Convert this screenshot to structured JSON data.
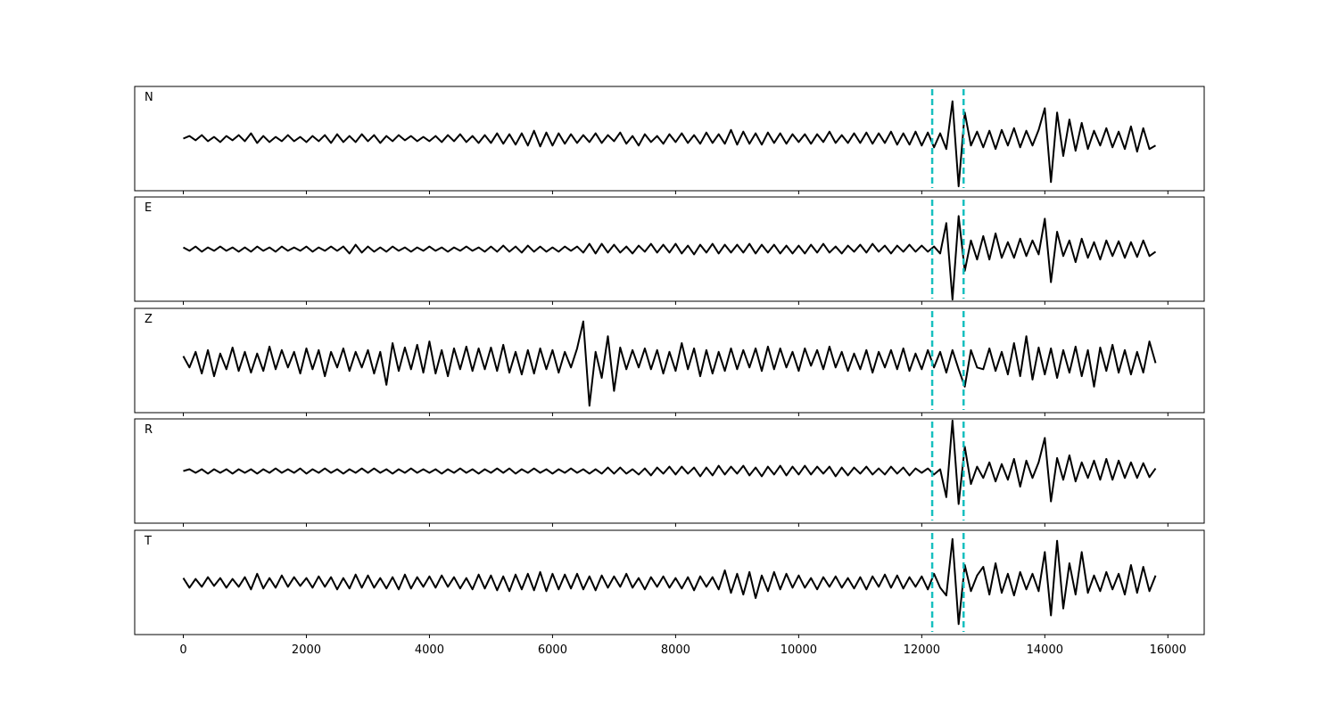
{
  "chart_data": {
    "type": "line",
    "x": [
      0,
      100,
      200,
      300,
      400,
      500,
      600,
      700,
      800,
      900,
      1000,
      1100,
      1200,
      1300,
      1400,
      1500,
      1600,
      1700,
      1800,
      1900,
      2000,
      2100,
      2200,
      2300,
      2400,
      2500,
      2600,
      2700,
      2800,
      2900,
      3000,
      3100,
      3200,
      3300,
      3400,
      3500,
      3600,
      3700,
      3800,
      3900,
      4000,
      4100,
      4200,
      4300,
      4400,
      4500,
      4600,
      4700,
      4800,
      4900,
      5000,
      5100,
      5200,
      5300,
      5400,
      5500,
      5600,
      5700,
      5800,
      5900,
      6000,
      6100,
      6200,
      6300,
      6400,
      6500,
      6600,
      6700,
      6800,
      6900,
      7000,
      7100,
      7200,
      7300,
      7400,
      7500,
      7600,
      7700,
      7800,
      7900,
      8000,
      8100,
      8200,
      8300,
      8400,
      8500,
      8600,
      8700,
      8800,
      8900,
      9000,
      9100,
      9200,
      9300,
      9400,
      9500,
      9600,
      9700,
      9800,
      9900,
      10000,
      10100,
      10200,
      10300,
      10400,
      10500,
      10600,
      10700,
      10800,
      10900,
      11000,
      11100,
      11200,
      11300,
      11400,
      11500,
      11600,
      11700,
      11800,
      11900,
      12000,
      12100,
      12200,
      12300,
      12400,
      12500,
      12600,
      12700,
      12800,
      12900,
      13000,
      13100,
      13200,
      13300,
      13400,
      13500,
      13600,
      13700,
      13800,
      13900,
      14000,
      14100,
      14200,
      14300,
      14400,
      14500,
      14600,
      14700,
      14800,
      14900,
      15000,
      15100,
      15200,
      15300,
      15400,
      15500,
      15600,
      15700,
      15800
    ],
    "xlim": [
      -790,
      16590
    ],
    "xticks": [
      0,
      2000,
      4000,
      6000,
      8000,
      10000,
      12000,
      14000,
      16000
    ],
    "ylim": [
      -60,
      60
    ],
    "vlines": [
      12170,
      12680
    ],
    "vline_color": "#17bfbf",
    "series": [
      {
        "name": "N",
        "color": "#000000",
        "values": [
          0,
          3,
          -2,
          4,
          -3,
          2,
          -4,
          3,
          -2,
          4,
          -3,
          6,
          -5,
          3,
          -4,
          2,
          -3,
          4,
          -3,
          2,
          -4,
          3,
          -3,
          4,
          -5,
          5,
          -4,
          3,
          -4,
          5,
          -3,
          4,
          -5,
          3,
          -3,
          4,
          -2,
          3,
          -3,
          2,
          -3,
          3,
          -4,
          4,
          -3,
          5,
          -4,
          3,
          -5,
          4,
          -5,
          6,
          -6,
          5,
          -7,
          6,
          -8,
          9,
          -9,
          7,
          -8,
          6,
          -6,
          5,
          -5,
          4,
          -4,
          6,
          -5,
          4,
          -3,
          7,
          -6,
          3,
          -8,
          5,
          -4,
          3,
          -6,
          5,
          -4,
          6,
          -5,
          4,
          -6,
          7,
          -5,
          5,
          -6,
          10,
          -7,
          8,
          -6,
          6,
          -7,
          7,
          -5,
          6,
          -6,
          5,
          -4,
          5,
          -6,
          5,
          -4,
          8,
          -5,
          4,
          -5,
          6,
          -5,
          7,
          -6,
          6,
          -5,
          8,
          -7,
          6,
          -7,
          8,
          -8,
          7,
          -10,
          6,
          -12,
          43,
          -55,
          30,
          -8,
          8,
          -10,
          9,
          -12,
          10,
          -8,
          12,
          -10,
          9,
          -8,
          10,
          35,
          -50,
          30,
          -20,
          22,
          -14,
          18,
          -12,
          9,
          -8,
          12,
          -10,
          8,
          -12,
          14,
          -15,
          12,
          -12,
          -8
        ]
      },
      {
        "name": "E",
        "color": "#000000",
        "values": [
          2,
          -2,
          3,
          -3,
          2,
          -2,
          3,
          -2,
          2,
          -3,
          2,
          -3,
          3,
          -2,
          2,
          -3,
          3,
          -2,
          2,
          -2,
          3,
          -3,
          2,
          -2,
          3,
          -2,
          3,
          -5,
          5,
          -4,
          3,
          -3,
          2,
          -3,
          3,
          -2,
          2,
          -3,
          2,
          -2,
          3,
          -2,
          2,
          -3,
          2,
          -2,
          3,
          -2,
          2,
          -3,
          3,
          -3,
          4,
          -3,
          3,
          -4,
          4,
          -3,
          3,
          -3,
          2,
          -3,
          3,
          -2,
          3,
          -4,
          6,
          -5,
          6,
          -4,
          5,
          -4,
          3,
          -5,
          4,
          -3,
          6,
          -4,
          5,
          -4,
          6,
          -5,
          4,
          -6,
          5,
          -4,
          6,
          -5,
          5,
          -4,
          5,
          -4,
          6,
          -5,
          5,
          -4,
          5,
          -5,
          4,
          -5,
          4,
          -5,
          5,
          -4,
          6,
          -4,
          3,
          -5,
          4,
          -3,
          5,
          -4,
          6,
          -3,
          4,
          -5,
          4,
          -3,
          5,
          -3,
          4,
          -3,
          3,
          -5,
          30,
          -58,
          38,
          -25,
          10,
          -12,
          15,
          -12,
          18,
          -10,
          8,
          -10,
          12,
          -8,
          10,
          -6,
          35,
          -38,
          20,
          -8,
          10,
          -15,
          12,
          -10,
          8,
          -12,
          10,
          -8,
          9,
          -10,
          8,
          -9,
          10,
          -8,
          -3
        ]
      },
      {
        "name": "Z",
        "color": "#000000",
        "values": [
          5,
          -8,
          10,
          -15,
          12,
          -18,
          8,
          -10,
          15,
          -12,
          10,
          -14,
          8,
          -12,
          16,
          -10,
          12,
          -8,
          10,
          -15,
          14,
          -10,
          12,
          -18,
          10,
          -8,
          14,
          -12,
          10,
          -8,
          12,
          -15,
          10,
          -28,
          20,
          -12,
          15,
          -10,
          18,
          -14,
          22,
          -15,
          12,
          -18,
          14,
          -10,
          16,
          -12,
          14,
          -10,
          15,
          -12,
          18,
          -14,
          10,
          -16,
          12,
          -15,
          14,
          -10,
          12,
          -14,
          10,
          -8,
          14,
          45,
          -52,
          10,
          -20,
          28,
          -35,
          15,
          -10,
          12,
          -8,
          14,
          -10,
          12,
          -15,
          10,
          -12,
          20,
          -10,
          14,
          -18,
          12,
          -15,
          10,
          -12,
          14,
          -10,
          12,
          -8,
          14,
          -12,
          16,
          -10,
          14,
          -8,
          10,
          -12,
          14,
          -6,
          12,
          -10,
          16,
          -8,
          10,
          -12,
          8,
          -10,
          12,
          -14,
          10,
          -8,
          12,
          -10,
          14,
          -12,
          8,
          -10,
          12,
          -8,
          10,
          -14,
          12,
          -10,
          -30,
          12,
          -8,
          -10,
          14,
          -12,
          10,
          -16,
          20,
          -18,
          28,
          -22,
          15,
          -16,
          14,
          -20,
          12,
          -14,
          16,
          -18,
          12,
          -30,
          15,
          -12,
          18,
          -14,
          12,
          -16,
          10,
          -14,
          22,
          -3
        ]
      },
      {
        "name": "R",
        "color": "#000000",
        "values": [
          0,
          2,
          -2,
          2,
          -3,
          2,
          -2,
          2,
          -3,
          2,
          -2,
          2,
          -3,
          2,
          -2,
          3,
          -2,
          2,
          -2,
          3,
          -3,
          2,
          -2,
          3,
          -2,
          2,
          -3,
          2,
          -2,
          3,
          -2,
          3,
          -2,
          2,
          -3,
          2,
          -2,
          3,
          -2,
          2,
          -2,
          2,
          -3,
          2,
          -2,
          3,
          -2,
          2,
          -3,
          2,
          -2,
          3,
          -2,
          3,
          -3,
          2,
          -2,
          3,
          -2,
          2,
          -3,
          2,
          -2,
          3,
          -2,
          2,
          -3,
          2,
          -3,
          4,
          -3,
          4,
          -3,
          2,
          -4,
          3,
          -5,
          4,
          -3,
          5,
          -4,
          5,
          -3,
          4,
          -6,
          4,
          -5,
          6,
          -4,
          5,
          -3,
          6,
          -5,
          4,
          -6,
          5,
          -4,
          6,
          -5,
          5,
          -4,
          6,
          -4,
          5,
          -3,
          5,
          -6,
          4,
          -5,
          4,
          -3,
          5,
          -4,
          3,
          -4,
          5,
          -3,
          4,
          -5,
          3,
          -2,
          3,
          -4,
          2,
          -30,
          58,
          -38,
          28,
          -15,
          5,
          -8,
          10,
          -12,
          8,
          -10,
          14,
          -18,
          12,
          -8,
          10,
          38,
          -35,
          15,
          -10,
          18,
          -12,
          10,
          -8,
          12,
          -10,
          14,
          -10,
          12,
          -8,
          10,
          -8,
          9,
          -7,
          3
        ]
      },
      {
        "name": "T",
        "color": "#000000",
        "values": [
          5,
          -6,
          4,
          -5,
          6,
          -4,
          5,
          -6,
          4,
          -5,
          6,
          -8,
          10,
          -7,
          5,
          -6,
          8,
          -5,
          6,
          -4,
          5,
          -6,
          7,
          -5,
          6,
          -8,
          5,
          -7,
          9,
          -6,
          8,
          -6,
          5,
          -7,
          6,
          -8,
          9,
          -7,
          6,
          -5,
          7,
          -6,
          8,
          -5,
          6,
          -7,
          5,
          -8,
          9,
          -7,
          8,
          -9,
          7,
          -10,
          9,
          -8,
          10,
          -9,
          12,
          -10,
          10,
          -8,
          9,
          -7,
          10,
          -8,
          7,
          -9,
          8,
          -6,
          7,
          -5,
          10,
          -6,
          5,
          -8,
          6,
          -5,
          7,
          -6,
          5,
          -7,
          6,
          -9,
          7,
          -5,
          6,
          -8,
          14,
          -12,
          10,
          -14,
          12,
          -18,
          8,
          -10,
          12,
          -8,
          10,
          -6,
          8,
          -6,
          5,
          -8,
          6,
          -5,
          7,
          -6,
          5,
          -7,
          6,
          -8,
          7,
          -5,
          9,
          -6,
          8,
          -7,
          6,
          -5,
          7,
          -8,
          10,
          -6,
          -15,
          50,
          -48,
          20,
          -10,
          8,
          18,
          -14,
          22,
          -12,
          10,
          -15,
          12,
          -8,
          10,
          -10,
          35,
          -38,
          48,
          -30,
          22,
          -14,
          35,
          -12,
          8,
          -10,
          12,
          -8,
          10,
          -14,
          20,
          -12,
          18,
          -10,
          8
        ]
      }
    ]
  }
}
